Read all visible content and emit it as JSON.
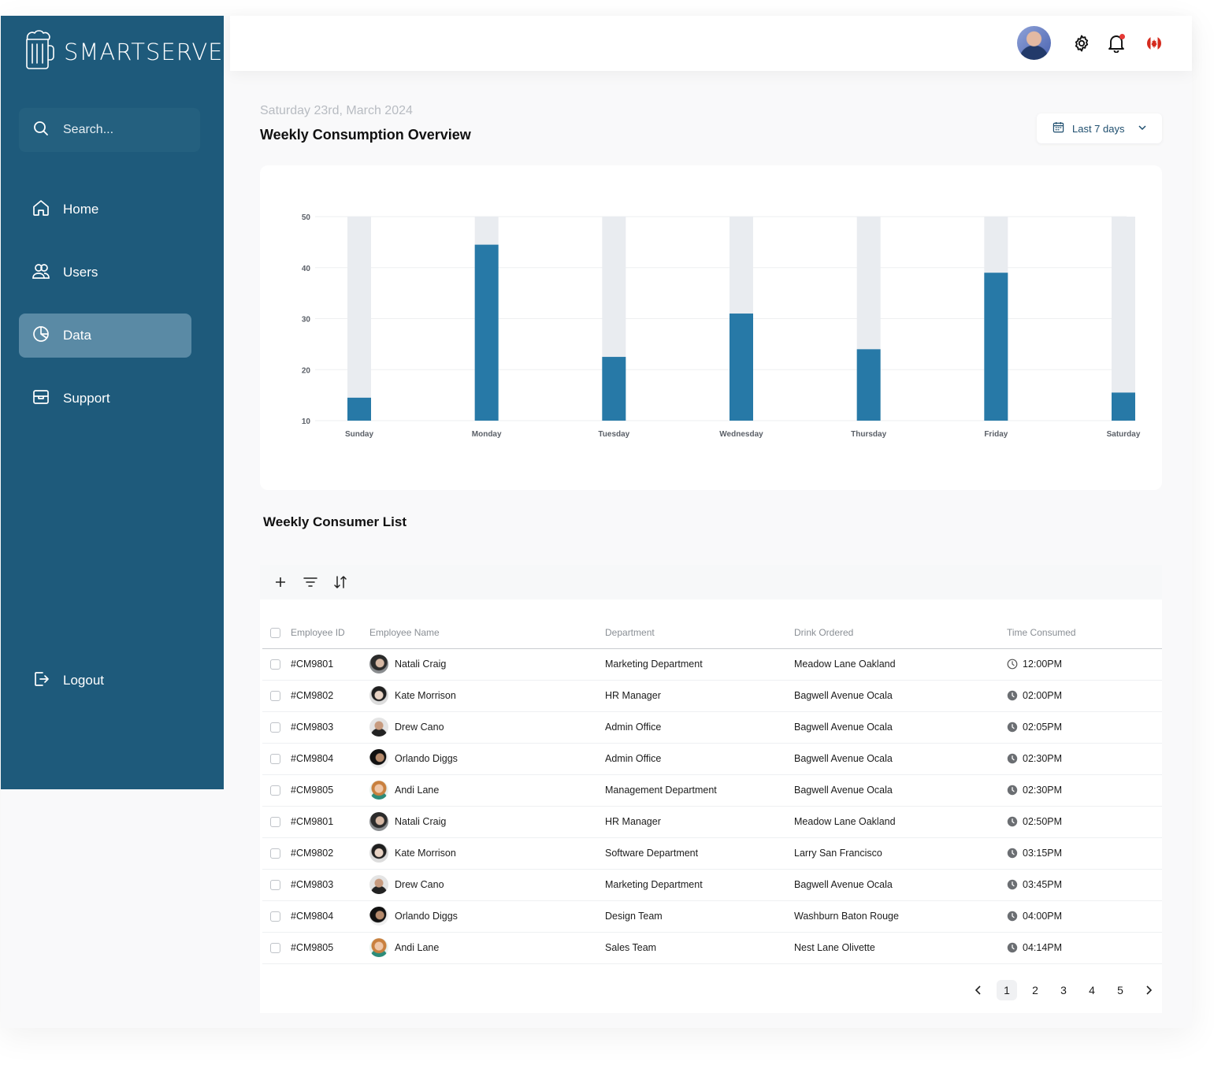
{
  "brand": {
    "name": "SMARTSERVE"
  },
  "search": {
    "placeholder": "Search..."
  },
  "nav": {
    "home": "Home",
    "users": "Users",
    "data": "Data",
    "support": "Support",
    "logout": "Logout",
    "active": "Data"
  },
  "header": {
    "date": "Saturday 23rd, March 2024",
    "title": "Weekly Consumption Overview",
    "range": "Last 7 days",
    "locale_flag": "canada-flag-icon"
  },
  "chart_data": {
    "type": "bar",
    "title": "",
    "xlabel": "",
    "ylabel": "",
    "ylim": [
      10,
      50
    ],
    "yticks": [
      10,
      20,
      30,
      40,
      50
    ],
    "categories": [
      "Sunday",
      "Monday",
      "Tuesday",
      "Wednesday",
      "Thursday",
      "Friday",
      "Saturday"
    ],
    "values": [
      14.5,
      44.5,
      22.5,
      31,
      24,
      39,
      15.5
    ],
    "grid": true,
    "colors": {
      "bar": "#2779a7",
      "track": "#e9ecf0",
      "grid": "#eeeff1"
    }
  },
  "table_section": {
    "title": "Weekly Consumer List",
    "columns": [
      "Employee ID",
      "Employee Name",
      "Department",
      "Drink Ordered",
      "Time Consumed"
    ],
    "rows": [
      {
        "id": "#CM9801",
        "name": "Natali Craig",
        "avatar": "p1",
        "department": "Marketing Department",
        "drink": "Meadow Lane Oakland",
        "time": "12:00PM"
      },
      {
        "id": "#CM9802",
        "name": "Kate Morrison",
        "avatar": "p2",
        "department": "HR Manager",
        "drink": "Bagwell Avenue Ocala",
        "time": "02:00PM"
      },
      {
        "id": "#CM9803",
        "name": "Drew Cano",
        "avatar": "p3",
        "department": "Admin Office",
        "drink": "Bagwell Avenue Ocala",
        "time": "02:05PM"
      },
      {
        "id": "#CM9804",
        "name": "Orlando Diggs",
        "avatar": "p4",
        "department": "Admin Office",
        "drink": "Bagwell Avenue Ocala",
        "time": "02:30PM"
      },
      {
        "id": "#CM9805",
        "name": "Andi Lane",
        "avatar": "p5",
        "department": "Management Department",
        "drink": "Bagwell Avenue Ocala",
        "time": "02:30PM"
      },
      {
        "id": "#CM9801",
        "name": "Natali Craig",
        "avatar": "p1",
        "department": "HR Manager",
        "drink": "Meadow Lane Oakland",
        "time": "02:50PM"
      },
      {
        "id": "#CM9802",
        "name": "Kate Morrison",
        "avatar": "p2",
        "department": "Software Department",
        "drink": "Larry San Francisco",
        "time": "03:15PM"
      },
      {
        "id": "#CM9803",
        "name": "Drew Cano",
        "avatar": "p3",
        "department": "Marketing Department",
        "drink": "Bagwell Avenue Ocala",
        "time": "03:45PM"
      },
      {
        "id": "#CM9804",
        "name": "Orlando Diggs",
        "avatar": "p4",
        "department": "Design Team",
        "drink": "Washburn Baton Rouge",
        "time": "04:00PM"
      },
      {
        "id": "#CM9805",
        "name": "Andi Lane",
        "avatar": "p5",
        "department": "Sales Team",
        "drink": "Nest Lane Olivette",
        "time": "04:14PM"
      }
    ]
  },
  "pagination": {
    "pages": [
      "1",
      "2",
      "3",
      "4",
      "5"
    ],
    "current": "1"
  }
}
